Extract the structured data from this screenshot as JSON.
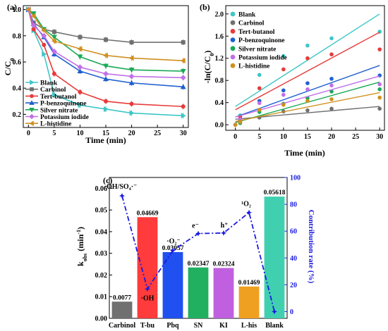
{
  "chart_data": [
    {
      "panel": "(a)",
      "type": "line",
      "xlabel": "Time (min)",
      "ylabel": "C/C",
      "ylabel_sub": "0",
      "xlim": [
        -1,
        31
      ],
      "ylim": [
        0.1,
        1.03
      ],
      "xticks": [
        0,
        5,
        10,
        15,
        20,
        25,
        30
      ],
      "yticks": [
        0.2,
        0.4,
        0.6,
        0.8,
        1.0
      ],
      "ytick_labels": [
        "0.2",
        "0.4",
        "0.6",
        "0.8",
        "1.0"
      ],
      "x": [
        0,
        1,
        3,
        5,
        10,
        15,
        20,
        30
      ],
      "legend_position": "bottom-left",
      "series": [
        {
          "name": "Blank",
          "color": "#3ec6c6",
          "marker": "triangle-right",
          "values": [
            1.0,
            0.84,
            0.66,
            0.35,
            0.27,
            0.24,
            0.21,
            0.19
          ]
        },
        {
          "name": "Carbinol",
          "color": "#707070",
          "marker": "square",
          "values": [
            1.0,
            0.9,
            0.85,
            0.83,
            0.79,
            0.77,
            0.75,
            0.75
          ]
        },
        {
          "name": "Tert-butanol",
          "color": "#e83a3a",
          "marker": "circle",
          "values": [
            1.0,
            0.85,
            0.73,
            0.51,
            0.37,
            0.3,
            0.28,
            0.26
          ]
        },
        {
          "name": "P-benzoquinone",
          "color": "#2060d0",
          "marker": "triangle-up",
          "values": [
            1.0,
            0.89,
            0.79,
            0.66,
            0.53,
            0.47,
            0.44,
            0.41
          ]
        },
        {
          "name": "Silver nitrate",
          "color": "#1aaa55",
          "marker": "triangle-down",
          "values": [
            1.0,
            0.97,
            0.85,
            0.79,
            0.64,
            0.57,
            0.54,
            0.53
          ]
        },
        {
          "name": "Potassium iodide",
          "color": "#c070e8",
          "marker": "diamond",
          "values": [
            1.0,
            0.88,
            0.8,
            0.68,
            0.56,
            0.51,
            0.49,
            0.48
          ]
        },
        {
          "name": "L-histidine",
          "color": "#d09020",
          "marker": "triangle-left",
          "values": [
            1.0,
            0.95,
            0.84,
            0.76,
            0.7,
            0.65,
            0.63,
            0.61
          ]
        }
      ]
    },
    {
      "panel": "(b)",
      "type": "scatter",
      "xlabel": "Time (min)",
      "ylabel": "-ln(C/C",
      "ylabel_sub": "0",
      "ylabel_tail": ")",
      "xlim": [
        -2,
        31
      ],
      "ylim": [
        -0.1,
        2.15
      ],
      "xticks": [
        0,
        5,
        10,
        15,
        20,
        25,
        30
      ],
      "yticks": [
        0.0,
        0.4,
        0.8,
        1.2,
        1.6,
        2.0
      ],
      "ytick_labels": [
        "0.0",
        "0.4",
        "0.8",
        "1.2",
        "1.6",
        "2.0"
      ],
      "x": [
        0,
        1,
        5,
        10,
        15,
        20,
        30
      ],
      "legend_position": "top-left",
      "series": [
        {
          "name": "Blank",
          "color": "#3ec6c6",
          "values": [
            0.0,
            0.17,
            0.9,
            1.24,
            1.43,
            1.56,
            1.68
          ],
          "fit": [
            0.33,
            2.0
          ]
        },
        {
          "name": "Carbinol",
          "color": "#707070",
          "values": [
            0.0,
            0.04,
            0.13,
            0.24,
            0.26,
            0.29,
            0.29
          ],
          "fit": [
            0.1,
            0.33
          ]
        },
        {
          "name": "Tert-butanol",
          "color": "#e83a3a",
          "values": [
            0.0,
            0.14,
            0.66,
            1.0,
            1.2,
            1.27,
            1.36
          ],
          "fit": [
            0.27,
            1.67
          ]
        },
        {
          "name": "P-benzoquinone",
          "color": "#2060d0",
          "values": [
            0.0,
            0.08,
            0.43,
            0.62,
            0.75,
            0.83,
            0.89
          ],
          "fit": [
            0.14,
            1.07
          ]
        },
        {
          "name": "Silver nitrate",
          "color": "#1aaa55",
          "values": [
            0.0,
            0.03,
            0.23,
            0.38,
            0.48,
            0.6,
            0.64
          ],
          "fit": [
            0.04,
            0.77
          ]
        },
        {
          "name": "Potassium iodide",
          "color": "#c070e8",
          "values": [
            0.0,
            0.1,
            0.39,
            0.54,
            0.64,
            0.71,
            0.73
          ],
          "fit": [
            0.14,
            0.88
          ]
        },
        {
          "name": "L-histidine",
          "color": "#d09020",
          "values": [
            0.0,
            0.05,
            0.27,
            0.36,
            0.43,
            0.46,
            0.49
          ],
          "fit": [
            0.06,
            0.58
          ]
        }
      ]
    },
    {
      "panel": "(c)",
      "type": "bar",
      "categories": [
        "Carbinol",
        "T-bu",
        "Pbq",
        "SN",
        "KI",
        "L-his",
        "Blank"
      ],
      "values": [
        0.0077,
        0.04669,
        0.03057,
        0.02347,
        0.02324,
        0.01469,
        0.05618
      ],
      "value_labels": [
        "0.0077",
        "0.04669",
        "0.03057",
        "0.02347",
        "0.02324",
        "0.01469",
        "0.05618"
      ],
      "colors": [
        "#707070",
        "#ff3b3b",
        "#2050f0",
        "#20b060",
        "#c060e0",
        "#f0a020",
        "#40d0b0"
      ],
      "ylabel": "k",
      "ylabel_sub": "obs",
      "ylabel_tail": " (min",
      "ylabel_sup": "-1",
      "ylabel_end": ")",
      "ylim": [
        0,
        0.065
      ],
      "yticks": [
        0.0,
        0.01,
        0.02,
        0.03,
        0.04,
        0.05,
        0.06
      ],
      "ytick_labels": [
        "0.00",
        "0.01",
        "0.02",
        "0.03",
        "0.04",
        "0.05",
        "0.06"
      ],
      "y2label": "Contribution rate (%)",
      "y2lim": [
        -5,
        100
      ],
      "y2ticks": [
        0,
        20,
        40,
        60,
        80,
        100
      ],
      "y2tick_labels": [
        "0",
        "20",
        "40",
        "60",
        "80",
        "100"
      ],
      "line_series": {
        "color": "#1a1ae0",
        "values": [
          86.3,
          16.9,
          45.6,
          58.2,
          58.6,
          73.9,
          0
        ]
      },
      "annotations": [
        {
          "text": "·OH/SO₄·⁻",
          "category": "Carbinol"
        },
        {
          "text": "·OH",
          "category": "T-bu"
        },
        {
          "text": "·O₂⁻",
          "category": "Pbq"
        },
        {
          "text": "e⁻",
          "category": "SN"
        },
        {
          "text": "h⁺",
          "category": "KI"
        },
        {
          "text": "¹O₂",
          "category": "L-his"
        }
      ]
    }
  ]
}
